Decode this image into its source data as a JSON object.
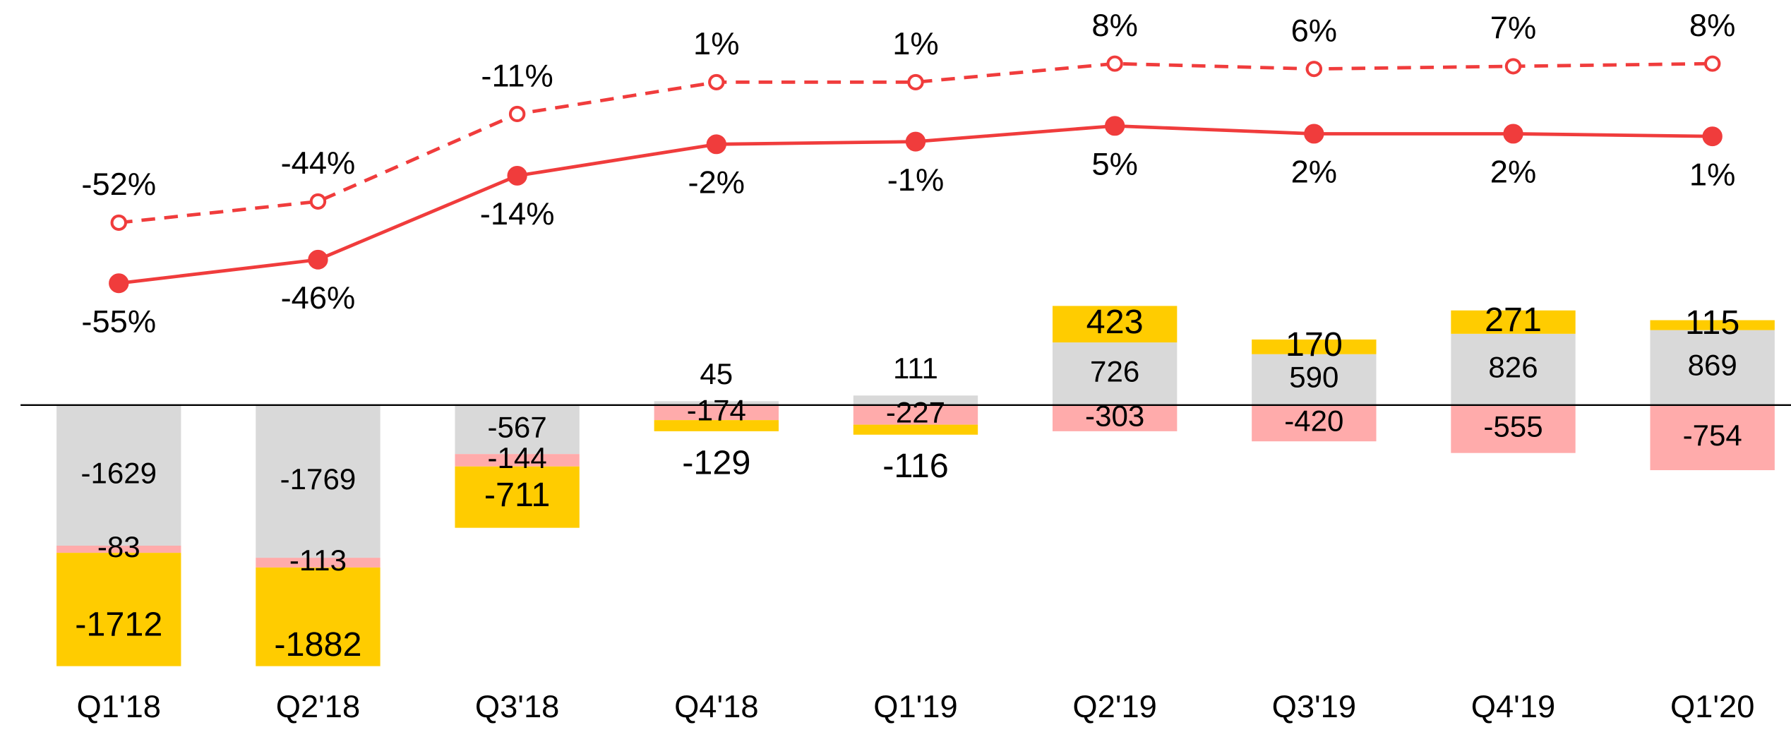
{
  "chart_data": {
    "type": "bar",
    "categories": [
      "Q1'18",
      "Q2'18",
      "Q3'18",
      "Q4'18",
      "Q1'19",
      "Q2'19",
      "Q3'19",
      "Q4'19",
      "Q1'20"
    ],
    "ylim": [
      -3846,
      4694
    ],
    "y2lim": [
      -228,
      53
    ],
    "y3lim": [
      -246,
      32
    ],
    "series": [
      {
        "color": "#d9d9d9",
        "values": [
          -1629,
          -1769,
          -567,
          45,
          111,
          726,
          590,
          826,
          869
        ]
      },
      {
        "color": "#ffabab",
        "values": [
          -83,
          -113,
          -144,
          -174,
          -227,
          -303,
          -420,
          -555,
          -754
        ]
      },
      {
        "color": "#ffcc00",
        "values": [
          -1712,
          -1882,
          -711,
          -129,
          -116,
          423,
          170,
          271,
          115
        ]
      },
      {
        "type": "line",
        "axis": "y2",
        "color": "#f03c3c",
        "dash": false,
        "filled": true,
        "values": [
          -55,
          -46,
          -14,
          -2,
          -1,
          5,
          2,
          2,
          1
        ],
        "value_labels": [
          "-55%",
          "-46%",
          "-14%",
          "-2%",
          "-1%",
          "5%",
          "2%",
          "2%",
          "1%"
        ]
      },
      {
        "type": "line",
        "axis": "y3",
        "color": "#f03c3c",
        "dash": true,
        "filled": false,
        "values": [
          -52,
          -44,
          -11,
          1,
          1,
          8,
          6,
          7,
          8
        ],
        "value_labels": [
          "-52%",
          "-44%",
          "-11%",
          "1%",
          "1%",
          "8%",
          "6%",
          "7%",
          "8%"
        ]
      }
    ]
  }
}
